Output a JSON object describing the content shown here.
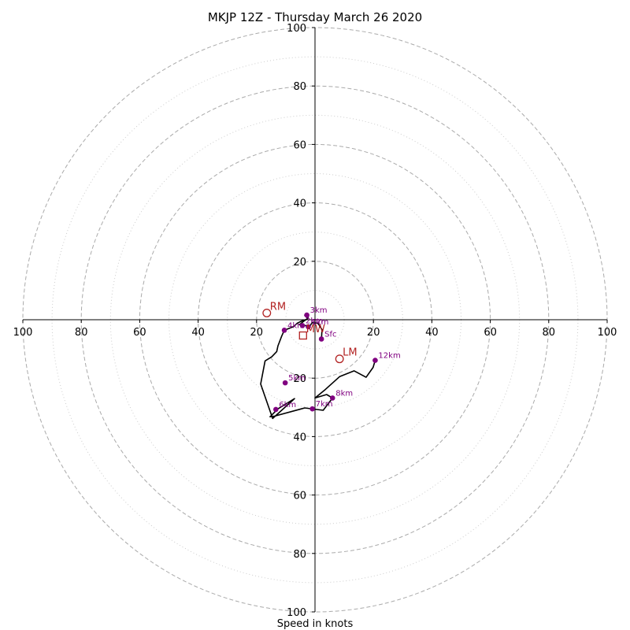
{
  "chart_data": {
    "type": "hodograph",
    "title": "MKJP 12Z - Thursday March 26 2020",
    "xlabel": "Speed in knots",
    "ylabel": "",
    "xlim": [
      -100,
      100
    ],
    "ylim": [
      -100,
      100
    ],
    "ring_major": [
      20,
      40,
      60,
      80,
      100
    ],
    "ring_minor": [
      10,
      30,
      50,
      70,
      90
    ],
    "x_tick_labels": [
      "100",
      "80",
      "60",
      "40",
      "20",
      "20",
      "40",
      "60",
      "80",
      "100"
    ],
    "x_tick_values": [
      -100,
      -80,
      -60,
      -40,
      -20,
      20,
      40,
      60,
      80,
      100
    ],
    "y_tick_labels": [
      "100",
      "80",
      "60",
      "40",
      "20",
      "20",
      "40",
      "60",
      "80",
      "100"
    ],
    "y_tick_values": [
      100,
      80,
      60,
      40,
      20,
      -20,
      -40,
      -60,
      -80,
      -100
    ],
    "grid": true,
    "colors": {
      "trace": "#000000",
      "height_markers": "#800080",
      "storm_motion": "#b22222",
      "grid": "#aaaaaa"
    },
    "trace": {
      "u": [
        2.2,
        2.4,
        1.0,
        -1.0,
        -1.9,
        -2.3,
        -2.1,
        -2.9,
        -4.3,
        -5.3,
        -4.0,
        -3.4,
        -2.5,
        -2.2,
        -2.8,
        -3.5,
        -2.5,
        -2.9,
        -4.5,
        -6.1,
        -7.4,
        -10.5,
        -11.4,
        -12.7,
        -13.1,
        -14.8,
        -17.1,
        -18.6,
        -14.5,
        -7.0,
        -12.7,
        -15.4,
        -13.8,
        -3.5,
        2.8,
        6.0,
        4.0,
        0,
        3.5,
        8.4,
        13.4,
        17.5,
        19.9,
        20.6
      ],
      "v": [
        -6.6,
        -3.4,
        -1.2,
        -1.0,
        -2.4,
        -2.4,
        -2.0,
        -2.0,
        -2.0,
        -1.7,
        -0.6,
        -0.2,
        0.4,
        1.4,
        1.6,
        1.5,
        0.4,
        0.1,
        -0.4,
        -1.2,
        -2.4,
        -3.6,
        -5.6,
        -9.0,
        -10.9,
        -12.7,
        -14.1,
        -22.0,
        -33.8,
        -27.0,
        -30.5,
        -33.2,
        -33.0,
        -30.2,
        -31.0,
        -26.8,
        -25.6,
        -26.8,
        -23.9,
        -19.5,
        -17.5,
        -19.7,
        -16.3,
        -13.9
      ]
    },
    "height_markers": [
      {
        "label": "Sfc",
        "u": 2.2,
        "v": -6.6
      },
      {
        "label": "1km",
        "u": -2.3,
        "v": -2.4
      },
      {
        "label": "2km",
        "u": -4.3,
        "v": -2.0
      },
      {
        "label": "3km",
        "u": -2.8,
        "v": 1.6
      },
      {
        "label": "4km",
        "u": -10.5,
        "v": -3.6
      },
      {
        "label": "5km",
        "u": -10.2,
        "v": -21.6
      },
      {
        "label": "6km",
        "u": -13.4,
        "v": -30.7
      },
      {
        "label": "7km",
        "u": -0.9,
        "v": -30.5
      },
      {
        "label": "8km",
        "u": 6.0,
        "v": -26.8
      },
      {
        "label": "12km",
        "u": 20.6,
        "v": -13.9
      }
    ],
    "storm_motion": [
      {
        "label": "RM",
        "marker": "circle",
        "u": -16.5,
        "v": 2.3
      },
      {
        "label": "LM",
        "marker": "circle",
        "u": 8.4,
        "v": -13.4
      },
      {
        "label": "MW",
        "marker": "square",
        "u": -4.1,
        "v": -5.4
      }
    ]
  }
}
